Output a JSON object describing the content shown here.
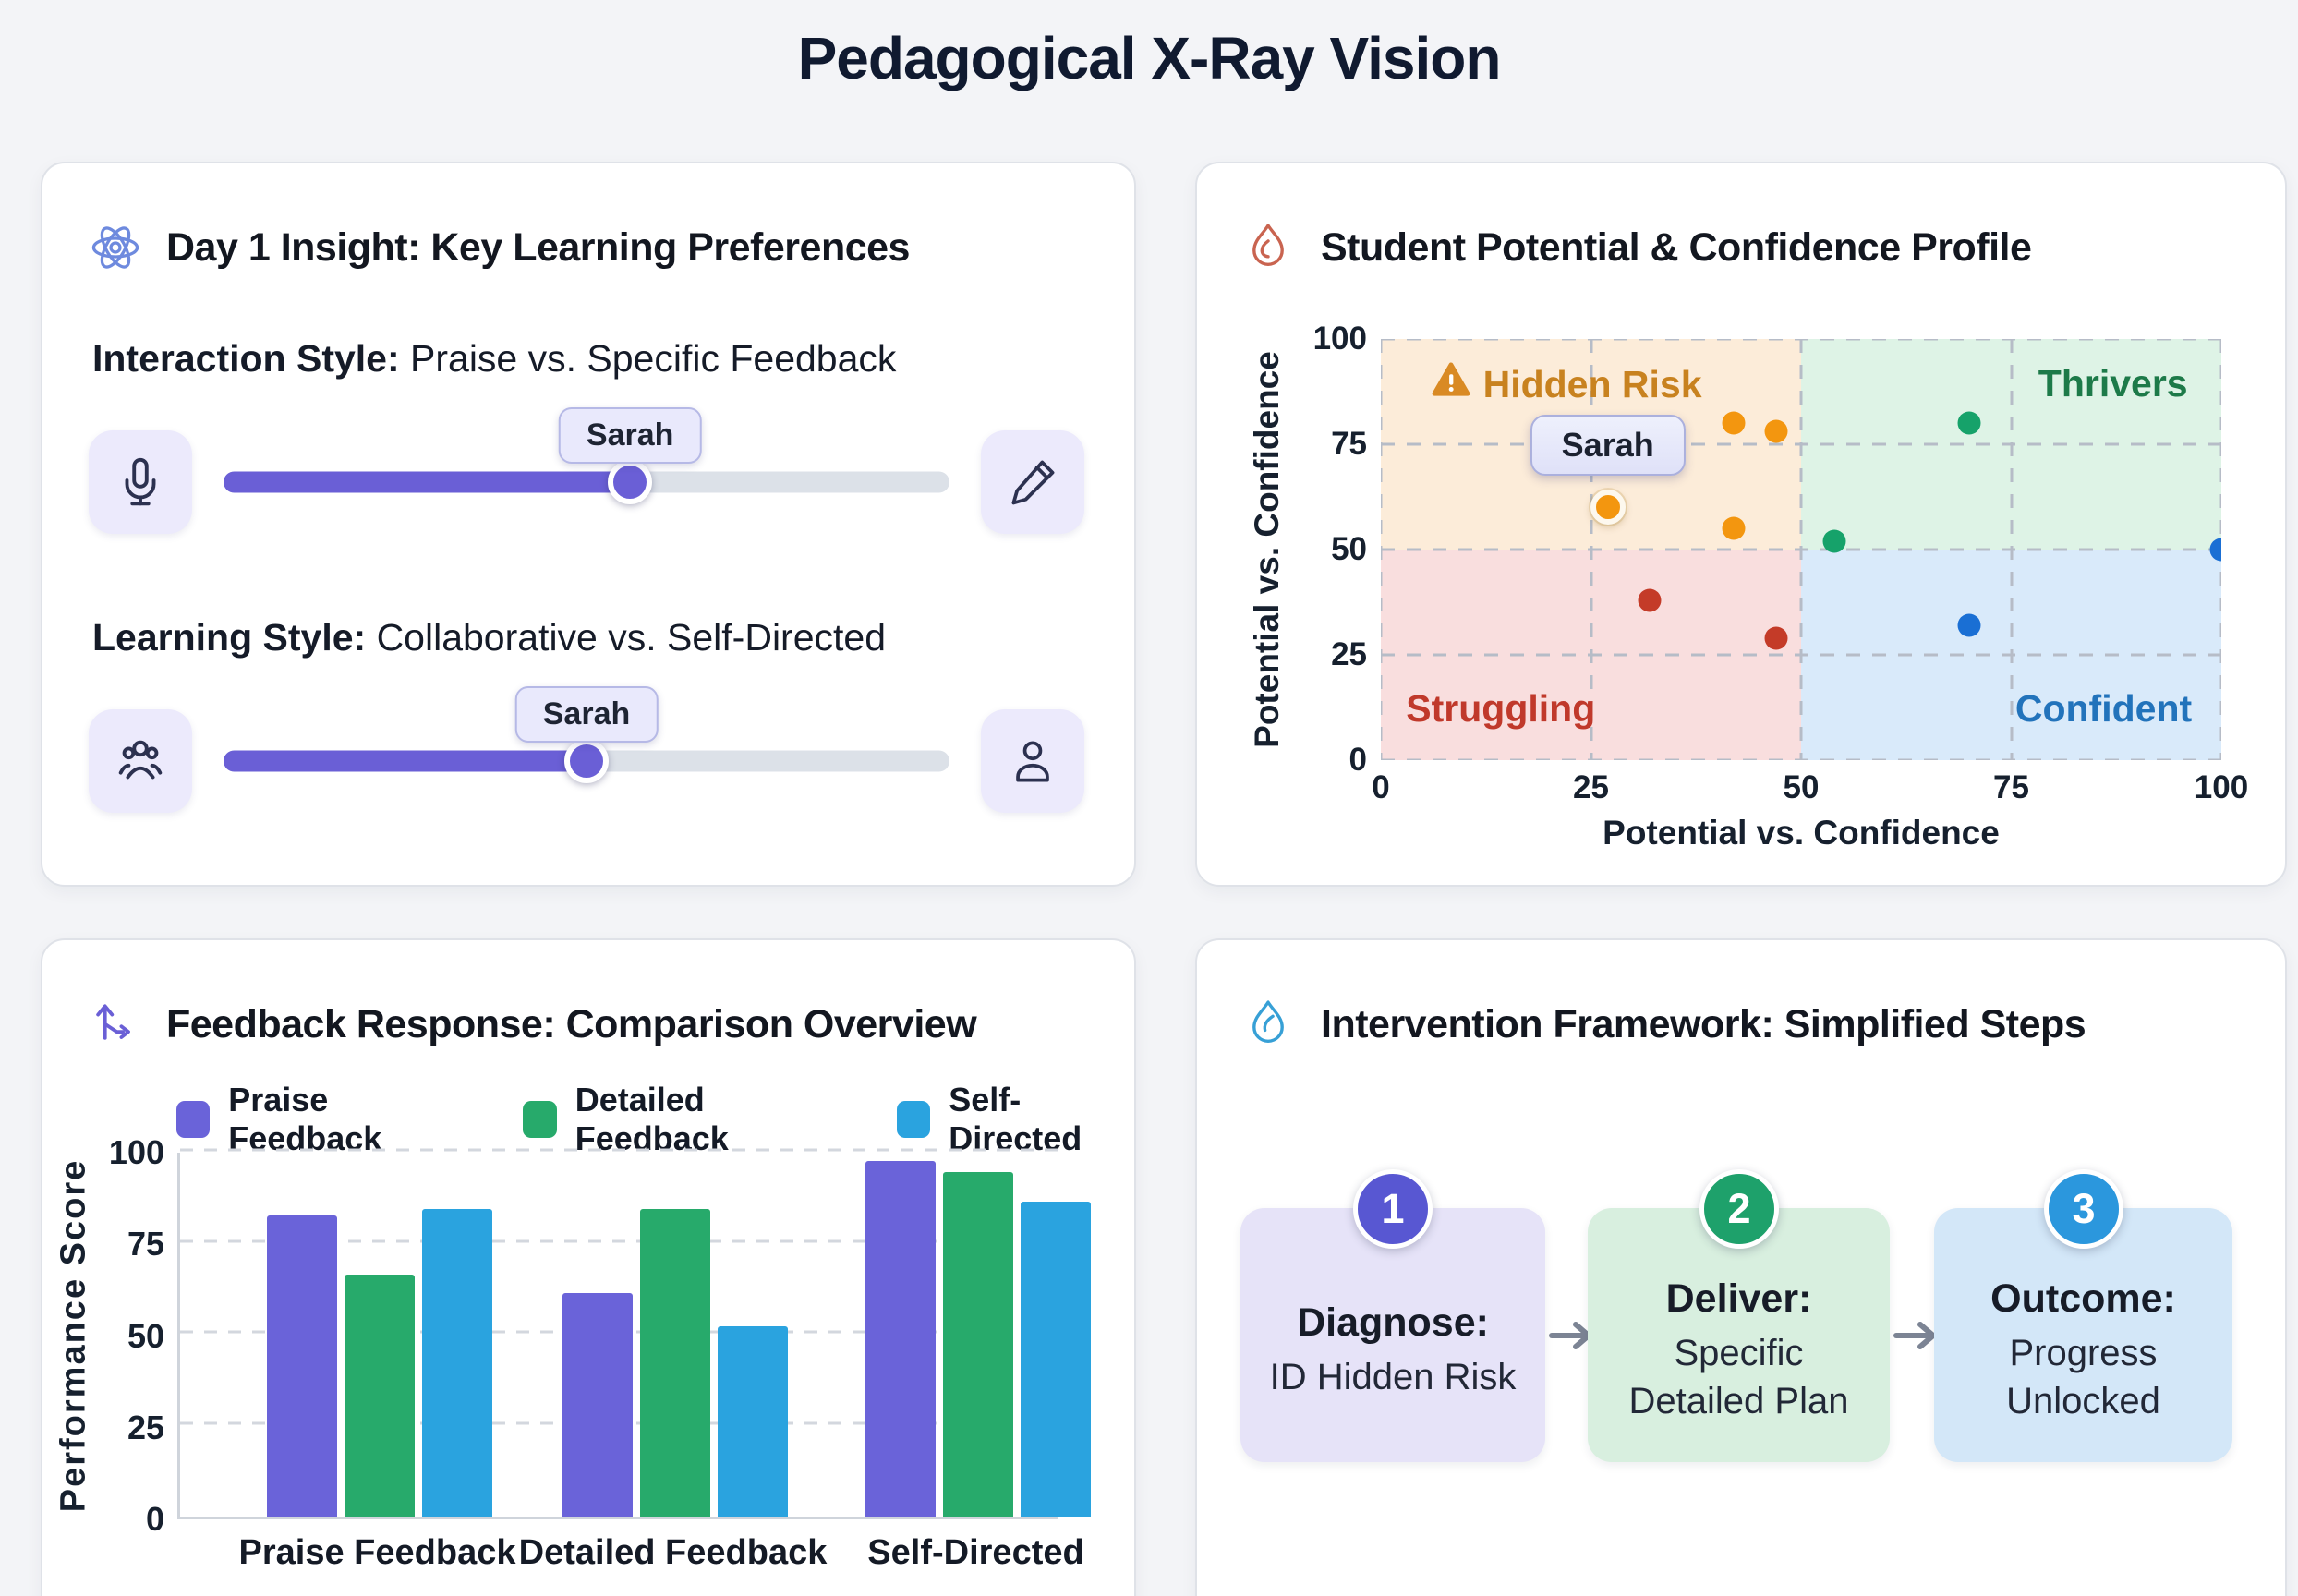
{
  "page_title": "Pedagogical X-Ray Vision",
  "colors": {
    "accent_purple": "#6a5fd6",
    "track_gray": "#dce1e8",
    "panel_border": "#dfe2e8",
    "orange_dot": "#f3960f",
    "green_dot": "#16a26a",
    "red_dot": "#c43b28",
    "blue_dot": "#1a6fd4"
  },
  "panel1": {
    "title": "Day 1 Insight: Key Learning Preferences",
    "icon": "atom-icon",
    "slider1": {
      "label_bold": "Interaction Style:",
      "label_rest": " Praise vs. Specific Feedback",
      "tooltip": "Sarah",
      "value_pct": 56,
      "left_icon": "microphone-icon",
      "right_icon": "pencil-icon"
    },
    "slider2": {
      "label_bold": "Learning Style:",
      "label_rest": " Collaborative vs. Self-Directed",
      "tooltip": "Sarah",
      "value_pct": 50,
      "left_icon": "people-group-icon",
      "right_icon": "person-icon"
    }
  },
  "panel2": {
    "title": "Student Potential & Confidence Profile",
    "icon": "flame-icon"
  },
  "panel3": {
    "title": "Feedback Response: Comparison Overview",
    "icon": "route-arrows-icon"
  },
  "panel4": {
    "title": "Intervention Framework: Simplified Steps",
    "icon": "blue-flame-icon",
    "steps": [
      {
        "number": "1",
        "title": "Diagnose:",
        "lines": [
          "ID Hidden Risk"
        ],
        "circle_color": "#5857d2",
        "card_bg": "#e6e3f8"
      },
      {
        "number": "2",
        "title": "Deliver:",
        "lines": [
          "Specific",
          "Detailed Plan"
        ],
        "circle_color": "#1ea16b",
        "card_bg": "#d8efdf"
      },
      {
        "number": "3",
        "title": "Outcome:",
        "lines": [
          "Progress",
          "Unlocked"
        ],
        "circle_color": "#2b97dd",
        "card_bg": "#d3e7f8"
      }
    ]
  },
  "chart_data": [
    {
      "type": "scatter",
      "title": "Student Potential & Confidence Profile",
      "xlabel": "Potential vs. Confidence",
      "ylabel": "Potential vs. Confidence",
      "xlim": [
        0,
        100
      ],
      "ylim": [
        0,
        100
      ],
      "xticks": [
        "0",
        "25",
        "50",
        "75",
        "100"
      ],
      "yticks": [
        "0",
        "25",
        "50",
        "75",
        "100"
      ],
      "grid": "dashed",
      "legend_position": "none",
      "quadrants": [
        {
          "name": "Hidden Risk",
          "x": [
            0,
            50
          ],
          "y": [
            50,
            100
          ],
          "bg": "#fcecd9",
          "label_color": "#c8821f",
          "label_pos": "top-left",
          "icon": "warning-icon"
        },
        {
          "name": "Thrivers",
          "x": [
            50,
            100
          ],
          "y": [
            50,
            100
          ],
          "bg": "#def3e6",
          "label_color": "#1d7a49",
          "label_pos": "top-right"
        },
        {
          "name": "Struggling",
          "x": [
            0,
            50
          ],
          "y": [
            0,
            50
          ],
          "bg": "#f9dede",
          "label_color": "#c0392b",
          "label_pos": "bottom-left"
        },
        {
          "name": "Confident",
          "x": [
            50,
            100
          ],
          "y": [
            0,
            50
          ],
          "bg": "#d9eafa",
          "label_color": "#2273bb",
          "label_pos": "bottom-right"
        }
      ],
      "series": [
        {
          "name": "Hidden Risk students",
          "color": "#f3960f",
          "points": [
            [
              42,
              80
            ],
            [
              47,
              78
            ],
            [
              42,
              55
            ]
          ]
        },
        {
          "name": "Sarah",
          "color": "#f3960f",
          "highlight": true,
          "tooltip": "Sarah",
          "points": [
            [
              27,
              60
            ]
          ]
        },
        {
          "name": "Thrivers students",
          "color": "#16a26a",
          "points": [
            [
              54,
              52
            ],
            [
              70,
              80
            ]
          ]
        },
        {
          "name": "Struggling students",
          "color": "#c43b28",
          "points": [
            [
              32,
              38
            ],
            [
              47,
              29
            ]
          ]
        },
        {
          "name": "Confident students",
          "color": "#1a6fd4",
          "points": [
            [
              70,
              32
            ],
            [
              100,
              50
            ]
          ]
        }
      ]
    },
    {
      "type": "bar",
      "title": "Feedback Response: Comparison Overview",
      "xlabel": "",
      "ylabel": "Performance Score",
      "categories": [
        "Praise Feedback",
        "Detailed Feedback",
        "Self-Directed"
      ],
      "series": [
        {
          "name": "Praise Feedback",
          "color": "#6a63d9",
          "values": [
            82,
            61,
            97
          ]
        },
        {
          "name": "Detailed Feedback",
          "color": "#27aa6b",
          "values": [
            66,
            84,
            94
          ]
        },
        {
          "name": "Self-Directed",
          "color": "#2aa3df",
          "values": [
            84,
            52,
            86
          ]
        }
      ],
      "ylim": [
        0,
        100
      ],
      "yticks": [
        "0",
        "25",
        "50",
        "75",
        "100"
      ],
      "grid": "dashed horizontal",
      "legend_position": "top"
    }
  ]
}
